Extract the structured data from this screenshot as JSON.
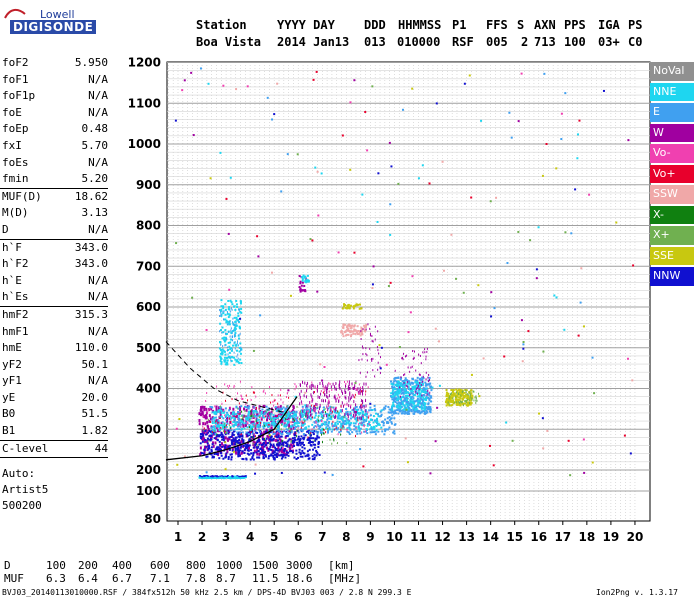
{
  "logo": {
    "top": "Lowell",
    "bottom": "DIGISONDE"
  },
  "header": {
    "row1": [
      "Station",
      "YYYY DAY",
      "DDD",
      "HHMMSS",
      "P1",
      "FFS",
      "S",
      "AXN",
      "PPS",
      "IGA",
      "PS"
    ],
    "row2": [
      "Boa Vista",
      "2014 Jan13",
      "013",
      "010000",
      "RSF",
      "005",
      "2",
      "713",
      "100",
      "03+",
      "C0"
    ]
  },
  "params": [
    {
      "label": "foF2",
      "value": "5.950"
    },
    {
      "label": "foF1",
      "value": "N/A"
    },
    {
      "label": "foF1p",
      "value": "N/A"
    },
    {
      "label": "foE",
      "value": "N/A"
    },
    {
      "label": "foEp",
      "value": "0.48"
    },
    {
      "label": "fxI",
      "value": "5.70"
    },
    {
      "label": "foEs",
      "value": "N/A"
    },
    {
      "label": "fmin",
      "value": "5.20",
      "sep": true
    },
    {
      "label": "MUF(D)",
      "value": "18.62"
    },
    {
      "label": "M(D)",
      "value": "3.13"
    },
    {
      "label": "D",
      "value": "N/A",
      "sep": true
    },
    {
      "label": "h`F",
      "value": "343.0"
    },
    {
      "label": "h`F2",
      "value": "343.0"
    },
    {
      "label": "h`E",
      "value": "N/A"
    },
    {
      "label": "h`Es",
      "value": "N/A",
      "sep": true
    },
    {
      "label": "hmF2",
      "value": "315.3"
    },
    {
      "label": "hmF1",
      "value": "N/A"
    },
    {
      "label": "hmE",
      "value": "110.0"
    },
    {
      "label": "yF2",
      "value": "50.1"
    },
    {
      "label": "yF1",
      "value": "N/A"
    },
    {
      "label": "yE",
      "value": "20.0"
    },
    {
      "label": "B0",
      "value": "51.5"
    },
    {
      "label": "B1",
      "value": "1.82",
      "sep": true
    },
    {
      "label": "C-level",
      "value": "44",
      "sep": true
    }
  ],
  "auto": [
    "Auto:",
    "Artist5",
    "500200"
  ],
  "legend": [
    {
      "label": "NoVal",
      "color": "#909090"
    },
    {
      "label": "NNE",
      "color": "#1ed6f0"
    },
    {
      "label": "E",
      "color": "#40a0f0"
    },
    {
      "label": "W",
      "color": "#a000a0"
    },
    {
      "label": "Vo-",
      "color": "#f040b0"
    },
    {
      "label": "Vo+",
      "color": "#e8002c"
    },
    {
      "label": "SSW",
      "color": "#f0a8a8"
    },
    {
      "label": "X-",
      "color": "#108010"
    },
    {
      "label": "X+",
      "color": "#70b050"
    },
    {
      "label": "SSE",
      "color": "#c8c810"
    },
    {
      "label": "NNW",
      "color": "#1010d0"
    }
  ],
  "distance_table": {
    "d_label": "D",
    "d_values": [
      "100",
      "200",
      "400",
      "600",
      "800",
      "1000",
      "1500",
      "3000"
    ],
    "d_unit": "[km]",
    "muf_label": "MUF",
    "muf_values": [
      "6.3",
      "6.4",
      "6.7",
      "7.1",
      "7.8",
      "8.7",
      "11.5",
      "18.6"
    ],
    "muf_unit": "[MHz]"
  },
  "footer": {
    "left": "BVJ03_20140113010000.RSF / 384fx512h 50 kHz 2.5 km / DPS-4D BVJ03 003 / 2.8 N 299.3 E",
    "right": "Ion2Png v. 1.3.17"
  },
  "chart_data": {
    "type": "scatter",
    "title": "",
    "xlabel": "",
    "ylabel": "",
    "xlim": [
      0.5,
      20.1
    ],
    "ylim": [
      80,
      1200
    ],
    "x_ticks": [
      "1",
      "2",
      "3",
      "4",
      "5",
      "6",
      "7",
      "8",
      "9",
      "10",
      "11",
      "12",
      "13",
      "14",
      "15",
      "16",
      "17",
      "18",
      "19",
      "20"
    ],
    "y_ticks": [
      "80",
      "100",
      "200",
      "300",
      "400",
      "500",
      "600",
      "700",
      "800",
      "900",
      "1000",
      "1100",
      "1200"
    ],
    "grid": true,
    "y_scale": "custom-nonlinear-below-200",
    "traces": [
      {
        "name": "NNW",
        "x": [
          1.8,
          2.5,
          3.5,
          4.5,
          5.5,
          6.5,
          7.0
        ],
        "y": [
          240,
          245,
          255,
          265,
          280,
          300,
          305
        ]
      },
      {
        "name": "E",
        "x": [
          2.5,
          3.5,
          4.5,
          5.5,
          6.5,
          7.5,
          8.5,
          9.5,
          10.5,
          11.5
        ],
        "y": [
          300,
          315,
          320,
          330,
          335,
          340,
          345,
          350,
          360,
          370
        ]
      },
      {
        "name": "NNE",
        "x": [
          2.0,
          2.5,
          3.0,
          3.5
        ],
        "y": [
          170,
          170,
          170,
          170
        ]
      },
      {
        "name": "SSE",
        "x": [
          12.1,
          12.5,
          13.0,
          13.5
        ],
        "y": [
          390,
          380,
          375,
          370
        ]
      }
    ],
    "profile_lines": {
      "true_height_profile": {
        "x": [
          0.5,
          2.0,
          3.0,
          4.0,
          5.0,
          5.95
        ],
        "y": [
          225,
          235,
          250,
          270,
          300,
          380
        ]
      },
      "dashed_curve": {
        "x": [
          0.5,
          1.5,
          2.5,
          3.5,
          4.5,
          5.5
        ],
        "y": [
          515,
          450,
          400,
          370,
          355,
          340
        ]
      }
    }
  }
}
